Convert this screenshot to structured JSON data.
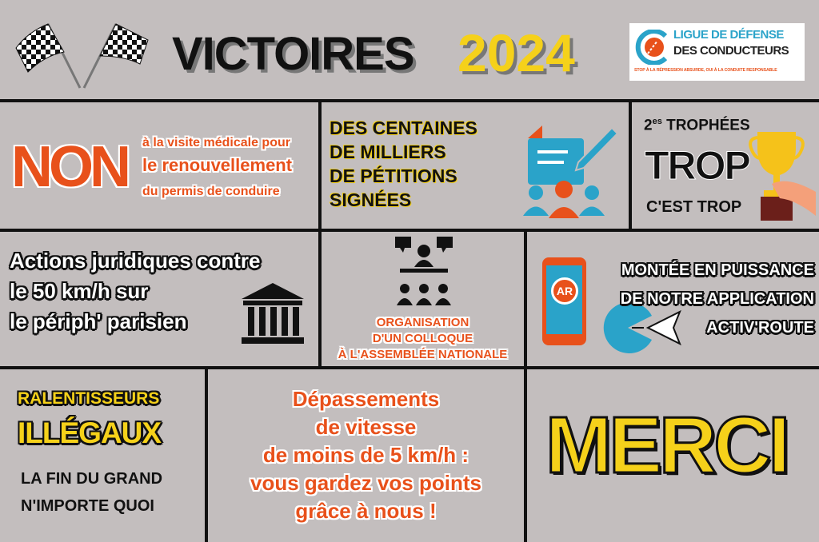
{
  "header": {
    "title": "VICTOIRES",
    "year": "2024",
    "logo": {
      "line1": "LIGUE DE DÉFENSE",
      "line2": "DES CONDUCTEURS",
      "tagline": "STOP À LA RÉPRESSION ABSURDE, OUI À LA CONDUITE RESPONSABLE"
    }
  },
  "cells": {
    "visite": {
      "big": "NON",
      "line1": "à la visite médicale pour",
      "line2": "le renouvellement",
      "line3": "du permis de conduire"
    },
    "petitions": {
      "lines": [
        "DES CENTAINES",
        "DE MILLIERS",
        "DE PÉTITIONS",
        "SIGNÉES"
      ]
    },
    "trophees": {
      "num": "2",
      "sup": "es",
      "label": "TROPHÉES",
      "big": "TROP",
      "sub": "C'EST TROP"
    },
    "juridique": {
      "lines": [
        "Actions juridiques contre",
        "le 50 km/h sur",
        "le périph' parisien"
      ]
    },
    "colloque": {
      "lines": [
        "ORGANISATION",
        "D'UN COLLOQUE",
        "À L'ASSEMBLÉE NATIONALE"
      ]
    },
    "app": {
      "lines": [
        "MONTÉE EN PUISSANCE",
        "DE NOTRE APPLICATION",
        "ACTIV'ROUTE"
      ],
      "icon_text": "AR"
    },
    "ralentisseurs": {
      "line1": "RALENTISSEURS",
      "line2": "ILLÉGAUX",
      "line3": "LA FIN DU GRAND",
      "line4": "N'IMPORTE QUOI"
    },
    "depassements": {
      "lines": [
        "Dépassements",
        "de vitesse",
        "de moins de 5 km/h :",
        "vous gardez vos points",
        "grâce à nous !"
      ]
    },
    "merci": {
      "text": "MERCI"
    }
  },
  "colors": {
    "background": "#c3bebe",
    "orange": "#e8511b",
    "yellow": "#f5d11a",
    "blue": "#2aa3c9"
  }
}
